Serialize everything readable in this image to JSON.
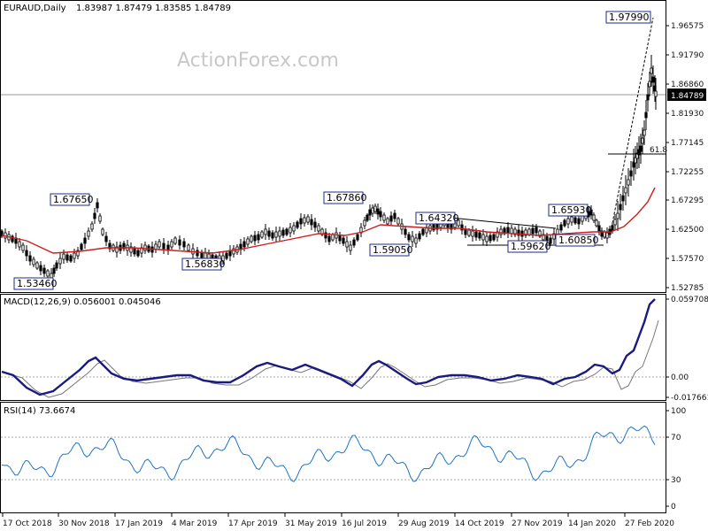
{
  "header": {
    "symbol": "EURAUD,Daily",
    "ohlc": "1.83987 1.87479 1.83585 1.84789"
  },
  "watermark": "ActionForex.com",
  "colors": {
    "candle": "#000000",
    "ma": "#cc1f1f",
    "macd": "#1a1a80",
    "signal": "#777777",
    "rsi": "#1e73c8",
    "label_border": "#1e2a8a",
    "grid": "#aaaaaa"
  },
  "price_panel": {
    "ylim": [
      1.5,
      2.0
    ],
    "y_ticks": [
      "1.52785",
      "1.57570",
      "1.62500",
      "1.67295",
      "1.72255",
      "1.77145",
      "1.81930",
      "1.86860",
      "1.91790",
      "1.96575"
    ],
    "current_price": "1.84789",
    "fib_label": "61.8",
    "annotations": [
      {
        "text": "1.53460"
      },
      {
        "text": "1.67650"
      },
      {
        "text": "1.56830"
      },
      {
        "text": "1.67860"
      },
      {
        "text": "1.59050"
      },
      {
        "text": "1.64320"
      },
      {
        "text": "1.59620"
      },
      {
        "text": "1.65930"
      },
      {
        "text": "1.60850"
      },
      {
        "text": "1.97990"
      }
    ]
  },
  "macd_panel": {
    "title": "MACD(12,26,9) 0.056001 0.045046",
    "y_ticks": [
      "0.059708",
      "0.00",
      "-0.017661"
    ]
  },
  "rsi_panel": {
    "title": "RSI(14) 73.6674",
    "y_ticks": [
      "100",
      "70",
      "30",
      "0"
    ]
  },
  "x_axis": {
    "ticks": [
      "17 Oct 2018",
      "30 Nov 2018",
      "17 Jan 2019",
      "4 Mar 2019",
      "17 Apr 2019",
      "31 May 2019",
      "16 Jul 2019",
      "29 Aug 2019",
      "14 Oct 2019",
      "27 Nov 2019",
      "14 Jan 2020",
      "27 Feb 2020"
    ]
  },
  "chart_data": {
    "type": "line",
    "title": "EURAUD,Daily",
    "x": [
      "17 Oct 2018",
      "30 Nov 2018",
      "17 Jan 2019",
      "4 Mar 2019",
      "17 Apr 2019",
      "31 May 2019",
      "16 Jul 2019",
      "29 Aug 2019",
      "14 Oct 2019",
      "27 Nov 2019",
      "14 Jan 2020",
      "27 Feb 2020"
    ],
    "series": [
      {
        "name": "EURAUD",
        "values": [
          1.615,
          1.58,
          1.595,
          1.6,
          1.575,
          1.63,
          1.645,
          1.625,
          1.615,
          1.615,
          1.625,
          1.82
        ]
      }
    ],
    "ylim": [
      1.5,
      2.0
    ],
    "grid": false
  }
}
